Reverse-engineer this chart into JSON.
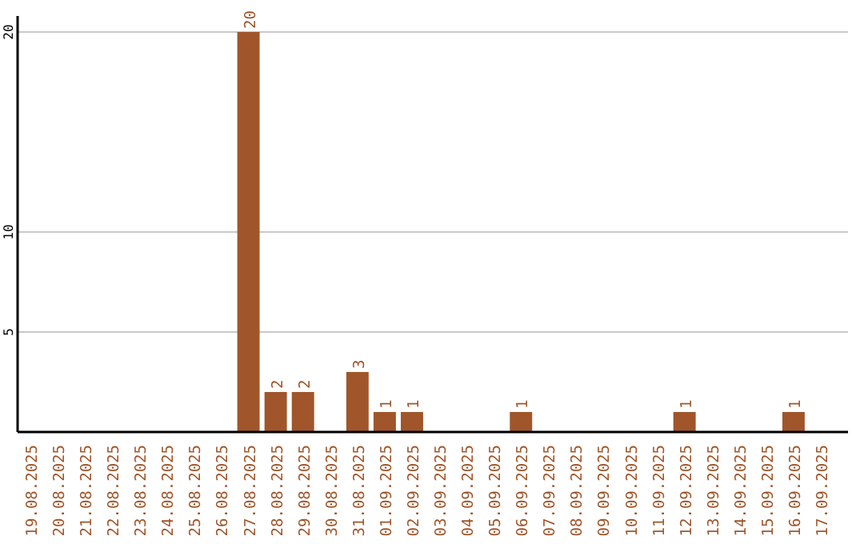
{
  "chart_data": {
    "type": "bar",
    "categories": [
      "19.08.2025",
      "20.08.2025",
      "21.08.2025",
      "22.08.2025",
      "23.08.2025",
      "24.08.2025",
      "25.08.2025",
      "26.08.2025",
      "27.08.2025",
      "28.08.2025",
      "29.08.2025",
      "30.08.2025",
      "31.08.2025",
      "01.09.2025",
      "02.09.2025",
      "03.09.2025",
      "04.09.2025",
      "05.09.2025",
      "06.09.2025",
      "07.09.2025",
      "08.09.2025",
      "09.09.2025",
      "10.09.2025",
      "11.09.2025",
      "12.09.2025",
      "13.09.2025",
      "14.09.2025",
      "15.09.2025",
      "16.09.2025",
      "17.09.2025"
    ],
    "values": [
      0,
      0,
      0,
      0,
      0,
      0,
      0,
      0,
      20,
      2,
      2,
      0,
      3,
      1,
      1,
      0,
      0,
      0,
      1,
      0,
      0,
      0,
      0,
      0,
      1,
      0,
      0,
      0,
      1,
      0
    ],
    "value_labels": [
      null,
      null,
      null,
      null,
      null,
      null,
      null,
      null,
      "20",
      "2",
      "2",
      null,
      "3",
      "1",
      "1",
      null,
      null,
      null,
      "1",
      null,
      null,
      null,
      null,
      null,
      "1",
      null,
      null,
      null,
      "1",
      null
    ],
    "color": "#a0562a",
    "ylim": [
      0,
      20.8
    ],
    "yticks": [
      5,
      10,
      20
    ],
    "grid": "y"
  }
}
